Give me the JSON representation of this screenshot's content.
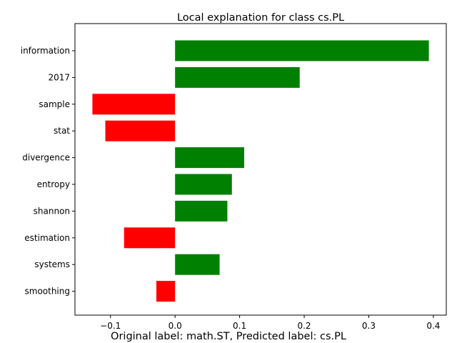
{
  "chart_data": {
    "type": "bar",
    "orientation": "horizontal",
    "title": "Local explanation for class cs.PL",
    "caption": "Original label: math.ST, Predicted label: cs.PL",
    "categories": [
      "information",
      "2017",
      "sample",
      "stat",
      "divergence",
      "entropy",
      "shannon",
      "estimation",
      "systems",
      "smoothing"
    ],
    "values": [
      0.393,
      0.193,
      -0.128,
      -0.108,
      0.107,
      0.088,
      0.081,
      -0.079,
      0.069,
      -0.029
    ],
    "xlim": [
      -0.155,
      0.42
    ],
    "xticks": [
      -0.1,
      0.0,
      0.1,
      0.2,
      0.3,
      0.4
    ],
    "xtick_labels": [
      "−0.1",
      "0.0",
      "0.1",
      "0.2",
      "0.3",
      "0.4"
    ],
    "positive_color": "#008000",
    "negative_color": "#ff0000",
    "grid": false
  }
}
